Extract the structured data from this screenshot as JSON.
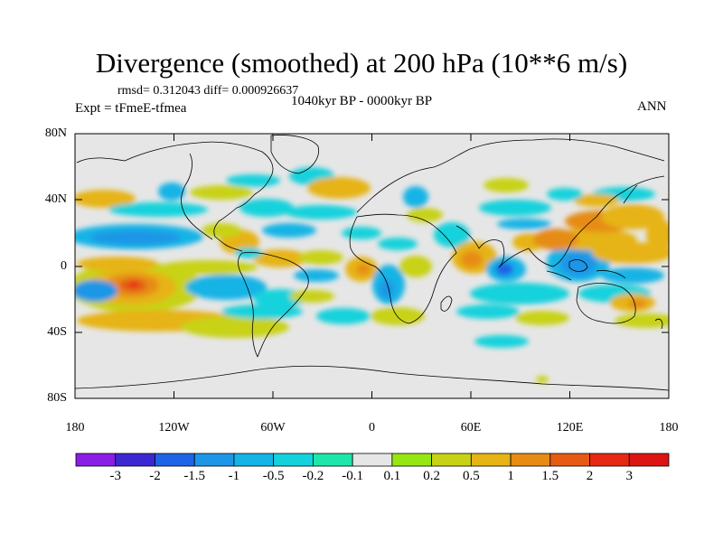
{
  "title": "Divergence (smoothed) at 200 hPa (10**6 m/s)",
  "stats": "rmsd= 0.312043 diff= 0.000926637",
  "experiment": "Expt = tFmeE-tfmea",
  "period": "1040kyr BP - 0000kyr BP",
  "season": "ANN",
  "lat_ticks": [
    "80N",
    "40N",
    "0",
    "40S",
    "80S"
  ],
  "lon_ticks": [
    "180",
    "120W",
    "60W",
    "0",
    "60E",
    "120E",
    "180"
  ],
  "colorbar": {
    "labels": [
      "-3",
      "-2",
      "-1.5",
      "-1",
      "-0.5",
      "-0.2",
      "-0.1",
      "0.1",
      "0.2",
      "0.5",
      "1",
      "1.5",
      "2",
      "3"
    ],
    "colors": [
      "#8a1ee6",
      "#3c28d2",
      "#1e64e6",
      "#1e96e6",
      "#14b4e6",
      "#14d2dc",
      "#1ee6aa",
      "#e6e6e6",
      "#96e614",
      "#c8d214",
      "#e6b414",
      "#e68c14",
      "#e65a14",
      "#e62814",
      "#dc1414"
    ]
  },
  "colors": {
    "background": "#e6e6e6",
    "coast": "#000000"
  }
}
